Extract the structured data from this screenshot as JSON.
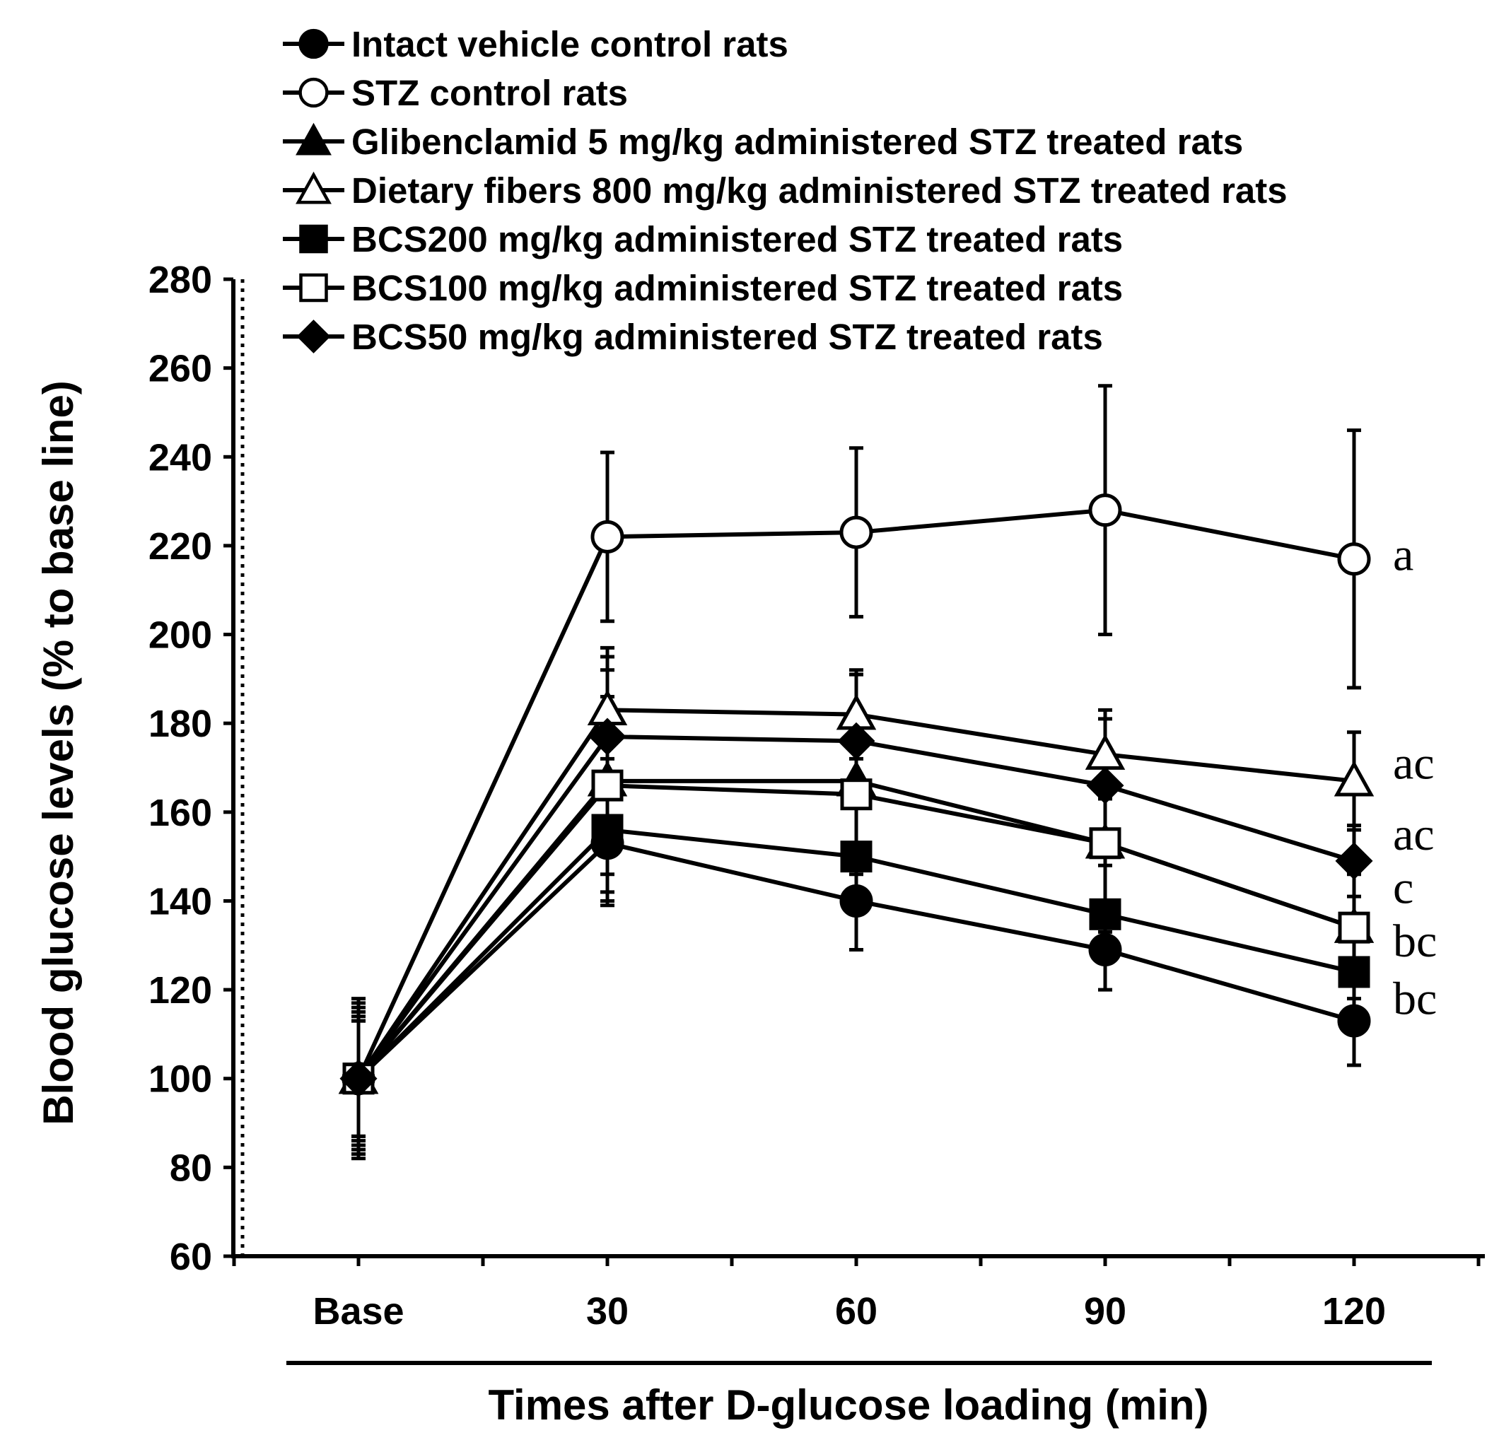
{
  "chart_data": {
    "type": "line",
    "title": "",
    "xlabel": "Times after D-glucose loading (min)",
    "ylabel": "Blood glucose levels (% to base line)",
    "categories": [
      "Base",
      "30",
      "60",
      "90",
      "120"
    ],
    "ylim": [
      60,
      280
    ],
    "y_ticks": [
      60,
      80,
      100,
      120,
      140,
      160,
      180,
      200,
      220,
      240,
      260,
      280
    ],
    "grid": false,
    "legend_position": "top-left",
    "series": [
      {
        "name": "Intact vehicle control rats",
        "marker": "circle-filled",
        "values": [
          100,
          153,
          140,
          129,
          113
        ],
        "errors": [
          17,
          14,
          11,
          9,
          10
        ]
      },
      {
        "name": "STZ control rats",
        "marker": "circle-open",
        "values": [
          100,
          222,
          223,
          228,
          217
        ],
        "errors": [
          18,
          19,
          19,
          28,
          29
        ]
      },
      {
        "name": "Glibenclamid 5 mg/kg administered STZ treated rats",
        "marker": "triangle-filled",
        "values": [
          100,
          167,
          167,
          153,
          134
        ],
        "errors": [
          15,
          25,
          24,
          20,
          16
        ]
      },
      {
        "name": "Dietary fibers 800 mg/kg administered STZ treated rats",
        "marker": "triangle-open",
        "values": [
          100,
          183,
          182,
          173,
          167
        ],
        "errors": [
          16,
          14,
          10,
          10,
          11
        ]
      },
      {
        "name": "BCS200 mg/kg administered STZ treated rats",
        "marker": "square-filled",
        "values": [
          100,
          156,
          150,
          137,
          124
        ],
        "errors": [
          13,
          16,
          13,
          11,
          11
        ]
      },
      {
        "name": "BCS100 mg/kg administered STZ treated rats",
        "marker": "square-open",
        "values": [
          100,
          166,
          164,
          153,
          134
        ],
        "errors": [
          13,
          20,
          18,
          14,
          12
        ]
      },
      {
        "name": "BCS50 mg/kg administered STZ treated rats",
        "marker": "diamond-filled",
        "values": [
          100,
          177,
          176,
          166,
          149
        ],
        "errors": [
          14,
          18,
          15,
          15,
          8
        ]
      }
    ],
    "annotations": [
      {
        "text": "a",
        "y": 218
      },
      {
        "text": "ac",
        "y": 171
      },
      {
        "text": "ac",
        "y": 155
      },
      {
        "text": "c",
        "y": 143
      },
      {
        "text": "bc",
        "y": 131
      },
      {
        "text": "bc",
        "y": 118
      }
    ]
  }
}
